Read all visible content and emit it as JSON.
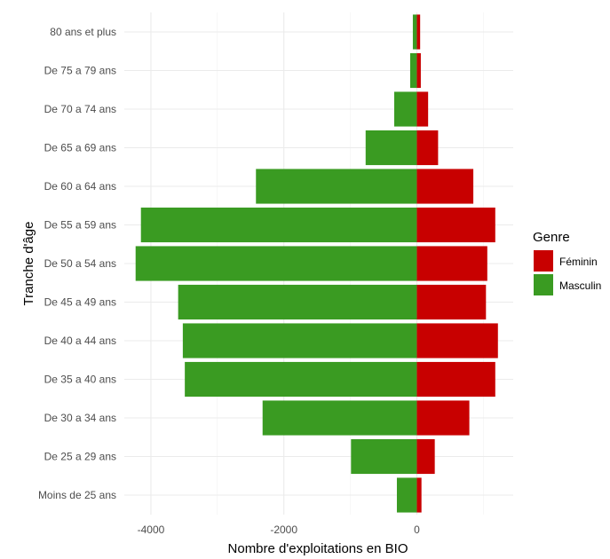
{
  "chart_data": {
    "type": "bar",
    "orientation": "horizontal",
    "subtype": "population-pyramid",
    "xlabel": "Nombre d'exploitations en BIO",
    "ylabel": "Tranche d'âge",
    "xlim": [
      -4400,
      1450
    ],
    "xticks": [
      -4000,
      -2000,
      0
    ],
    "xtick_labels": [
      "-4000",
      "-2000",
      "0"
    ],
    "grid": true,
    "legend": {
      "title": "Genre",
      "placement": "right"
    },
    "categories": [
      "Moins de 25 ans",
      "De 25 a 29 ans",
      "De 30 a 34 ans",
      "De 35 a 40 ans",
      "De 40 a 44 ans",
      "De 45 a 49 ans",
      "De 50 a 54 ans",
      "De 55 a 59 ans",
      "De 60 a 64 ans",
      "De 65 a 69 ans",
      "De 70 a 74 ans",
      "De 75 a 79 ans",
      "80 ans et plus"
    ],
    "series": [
      {
        "name": "Féminin",
        "color": "#c80000",
        "values": [
          70,
          270,
          790,
          1180,
          1220,
          1040,
          1060,
          1180,
          850,
          320,
          170,
          60,
          50
        ]
      },
      {
        "name": "Masculin",
        "color": "#3a9b22",
        "values": [
          -300,
          -990,
          -2320,
          -3490,
          -3520,
          -3590,
          -4230,
          -4150,
          -2420,
          -770,
          -340,
          -100,
          -60
        ]
      }
    ]
  }
}
